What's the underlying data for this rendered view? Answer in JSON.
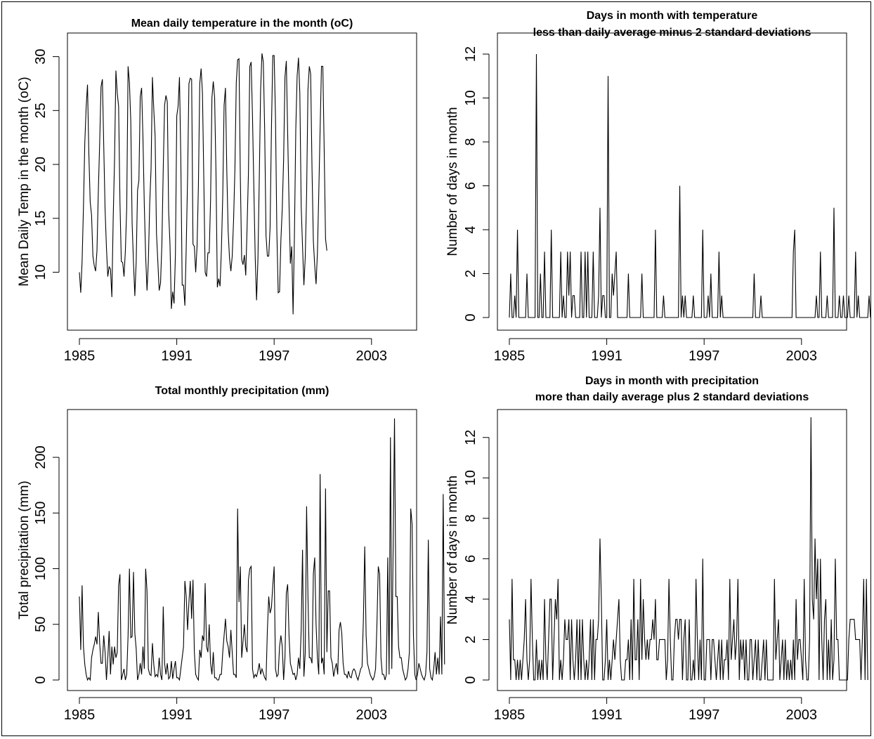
{
  "chart_data": [
    {
      "id": "temp",
      "type": "line",
      "title_lines": [
        "Mean daily temperature in the month (oC)"
      ],
      "xlabel": "",
      "ylabel": "Mean Daily Temp in the month (oC)",
      "xlim": [
        1985,
        2005
      ],
      "ylim": [
        5.8,
        30.3
      ],
      "x_ticks": [
        "1985",
        "1991",
        "1997",
        "2003"
      ],
      "y_ticks": [
        "10",
        "15",
        "20",
        "25",
        "30"
      ],
      "grid": false,
      "series": [
        {
          "x_start": 1985,
          "x_step": 0.0833333,
          "values": [
            10,
            8.1,
            11,
            16,
            22,
            25.3,
            27.4,
            21,
            16.5,
            15.3,
            11.5,
            10.6,
            10.1,
            12,
            17.5,
            22,
            27.2,
            27.9,
            21.8,
            15.8,
            12.3,
            9.6,
            10.5,
            10.3,
            7.7,
            15,
            20.5,
            28.7,
            26.6,
            25.4,
            16.5,
            11,
            10.9,
            9.6,
            12,
            16,
            29.1,
            27.6,
            24,
            14.5,
            10.9,
            7.8,
            11,
            17.6,
            18.5,
            26.3,
            27.1,
            22.5,
            16.2,
            11.5,
            8.3,
            11,
            16.4,
            19.6,
            28.1,
            25.1,
            22.6,
            13.6,
            11,
            8.3,
            9,
            12.6,
            19.6,
            25.5,
            26.4,
            25.8,
            15.6,
            12.6,
            6.6,
            8.2,
            7.1,
            11.6,
            24.5,
            25.4,
            28.1,
            20.5,
            8.8,
            8.8,
            6.9,
            12.3,
            18.8,
            27.5,
            28,
            27.9,
            12.6,
            12.4,
            10,
            12.4,
            18,
            27.5,
            28.9,
            26.6,
            18.6,
            10,
            9.6,
            11.8,
            11.8,
            16.7,
            26.2,
            27.7,
            26.2,
            19.2,
            8.6,
            9.4,
            8.7,
            12.1,
            17.1,
            25.5,
            27.1,
            19.4,
            13.8,
            11.3,
            10.1,
            11.5,
            14.8,
            19.6,
            27.6,
            29.7,
            29.8,
            18.9,
            11.2,
            10.7,
            11.6,
            9.7,
            14.2,
            19.2,
            29.1,
            29.5,
            24.4,
            17.8,
            11.4,
            7.4,
            11.1,
            18.6,
            26.9,
            30.3,
            29.5,
            23.2,
            13.4,
            11.5,
            11.5,
            14.1,
            23.3,
            30.1,
            30.1,
            24.4,
            13.8,
            8.1,
            8.2,
            13,
            15.9,
            20.4,
            28.1,
            29.6,
            22.9,
            16.4,
            10.8,
            12.4,
            6.1,
            13.4,
            23.2,
            28.2,
            29.9,
            26.6,
            16.1,
            12.4,
            8.8,
            11.4,
            17.2,
            26.9,
            29.1,
            28.4,
            19.6,
            12.9,
            10.6,
            8.9,
            11.8,
            17.3,
            23.3,
            29.1,
            29.1,
            21.4,
            13.1,
            12
          ]
        }
      ]
    },
    {
      "id": "cold",
      "type": "line",
      "title_lines": [
        "Days in month with temperature",
        "less than daily average minus 2 standard deviations"
      ],
      "xlabel": "",
      "ylabel": "Number of days in month",
      "xlim": [
        1985,
        2005
      ],
      "ylim": [
        0,
        12
      ],
      "x_ticks": [
        "1985",
        "1991",
        "1997",
        "2003"
      ],
      "y_ticks": [
        "0",
        "2",
        "4",
        "6",
        "8",
        "10",
        "12"
      ],
      "grid": false,
      "series": [
        {
          "x_start": 1985,
          "x_step": 0.0833333,
          "values": [
            0,
            2,
            0,
            0,
            1,
            0,
            4,
            0,
            0,
            0,
            0,
            0,
            0,
            2,
            0,
            0,
            0,
            0,
            0,
            0,
            12,
            0,
            0,
            2,
            0,
            0,
            3,
            0,
            0,
            0,
            0,
            4,
            0,
            0,
            0,
            0,
            0,
            0,
            3,
            0,
            1,
            0,
            0,
            3,
            1,
            3,
            0,
            1,
            1,
            0,
            0,
            0,
            0,
            3,
            0,
            0,
            3,
            0,
            3,
            0,
            0,
            0,
            3,
            0,
            0,
            0,
            1,
            5,
            0,
            1,
            1,
            0,
            0,
            11,
            0,
            0,
            2,
            1,
            2,
            3,
            0,
            0,
            0,
            0,
            0,
            0,
            0,
            0,
            2,
            0,
            0,
            0,
            0,
            0,
            0,
            0,
            0,
            0,
            2,
            0,
            0,
            0,
            0,
            0,
            0,
            0,
            0,
            0,
            4,
            0,
            0,
            0,
            0,
            0,
            1,
            0,
            0,
            0,
            0,
            0,
            0,
            0,
            0,
            0,
            0,
            0,
            6,
            0,
            1,
            0,
            1,
            0,
            0,
            0,
            0,
            0,
            1,
            0,
            0,
            0,
            0,
            0,
            0,
            4,
            0,
            0,
            0,
            1,
            0,
            2,
            0,
            0,
            0,
            0,
            0,
            3,
            0,
            1,
            0,
            0,
            0,
            0,
            0,
            0,
            0,
            0,
            0,
            0,
            0,
            0,
            0,
            0,
            0,
            0,
            0,
            0,
            0,
            0,
            0,
            0,
            0,
            2,
            0,
            0,
            0,
            0,
            1,
            0,
            0,
            0,
            0,
            0,
            0,
            0,
            0,
            0,
            0,
            0,
            0,
            0,
            0,
            0,
            0,
            0,
            0,
            0,
            0,
            0,
            0,
            0,
            3,
            4,
            0,
            0,
            0,
            0,
            0,
            0,
            0,
            0,
            0,
            0,
            0,
            0,
            0,
            0,
            0,
            1,
            0,
            0,
            3,
            0,
            0,
            0,
            0,
            1,
            0,
            0,
            0,
            0,
            5,
            0,
            0,
            0,
            1,
            0,
            0,
            1,
            0,
            0,
            0,
            1,
            0,
            0,
            0,
            0,
            3,
            0,
            1,
            0,
            0,
            0,
            0,
            0,
            0,
            0,
            1,
            0
          ]
        }
      ]
    },
    {
      "id": "precip",
      "type": "line",
      "title_lines": [
        "Total monthly precipitation (mm)"
      ],
      "xlabel": "",
      "ylabel": "Total precipitation (mm)",
      "xlim": [
        1985,
        2005
      ],
      "ylim": [
        0,
        236
      ],
      "x_ticks": [
        "1985",
        "1991",
        "1997",
        "2003"
      ],
      "y_ticks": [
        "0",
        "50",
        "100",
        "150",
        "200"
      ],
      "grid": false,
      "series": [
        {
          "x_start": 1985,
          "x_step": 0.0833333,
          "values": [
            75,
            27,
            85,
            30,
            14,
            5,
            0,
            2,
            0,
            20,
            27,
            32,
            39,
            32,
            61,
            33,
            15,
            15,
            40,
            25,
            0,
            20,
            44,
            5,
            30,
            14,
            30,
            20,
            25,
            85,
            95,
            0,
            5,
            10,
            0,
            5,
            40,
            100,
            38,
            39,
            97,
            42,
            28,
            0,
            5,
            15,
            5,
            30,
            10,
            100,
            80,
            10,
            5,
            4,
            33,
            14,
            3,
            5,
            3,
            20,
            5,
            0,
            66,
            15,
            5,
            15,
            1,
            3,
            17,
            1,
            10,
            17,
            2,
            2,
            0,
            10,
            20,
            30,
            89,
            75,
            45,
            70,
            89,
            55,
            90,
            25,
            5,
            2,
            0,
            27,
            20,
            40,
            35,
            87,
            30,
            25,
            50,
            15,
            5,
            25,
            2,
            2,
            0,
            0,
            5,
            5,
            25,
            40,
            55,
            35,
            30,
            20,
            45,
            25,
            5,
            5,
            2,
            154,
            70,
            102,
            20,
            35,
            50,
            30,
            25,
            90,
            100,
            102,
            10,
            2,
            5,
            3,
            8,
            15,
            5,
            10,
            6,
            2,
            0,
            45,
            75,
            60,
            65,
            85,
            102,
            10,
            3,
            5,
            30,
            40,
            30,
            0,
            20,
            78,
            86,
            40,
            15,
            10,
            5,
            6,
            0,
            5,
            20,
            10,
            45,
            117,
            3,
            24,
            156,
            75,
            20,
            20,
            15,
            95,
            110,
            50,
            20,
            5,
            185,
            15,
            20,
            5,
            172,
            25,
            80,
            80,
            20,
            15,
            3,
            10,
            15,
            5,
            45,
            52,
            42,
            15,
            5,
            5,
            2,
            8,
            3,
            2,
            8,
            10,
            8,
            3,
            0,
            5,
            10,
            12,
            55,
            120,
            40,
            15,
            10,
            5,
            2,
            0,
            3,
            10,
            50,
            102,
            95,
            20,
            5,
            5,
            0,
            5,
            110,
            5,
            218,
            10,
            120,
            235,
            75,
            75,
            30,
            20,
            20,
            10,
            5,
            0,
            2,
            10,
            25,
            154,
            140,
            40,
            5,
            0,
            5,
            15,
            10,
            5,
            2,
            0,
            5,
            25,
            126,
            10,
            2,
            0,
            10,
            25,
            5,
            20,
            5,
            57,
            5,
            167,
            14
          ]
        }
      ]
    },
    {
      "id": "wet",
      "type": "line",
      "title_lines": [
        "Days in month with precipitation",
        "more than daily average plus 2 standard deviations"
      ],
      "xlabel": "",
      "ylabel": "Number of days in month",
      "xlim": [
        1985,
        2005
      ],
      "ylim": [
        0,
        13
      ],
      "x_ticks": [
        "1985",
        "1991",
        "1997",
        "2003"
      ],
      "y_ticks": [
        "0",
        "2",
        "4",
        "6",
        "8",
        "10",
        "12"
      ],
      "grid": false,
      "series": [
        {
          "x_start": 1985,
          "x_step": 0.0833333,
          "values": [
            3,
            0,
            5,
            1,
            1,
            0,
            1,
            0,
            1,
            0,
            1,
            2,
            4,
            1,
            0,
            1,
            5,
            2,
            0,
            0,
            2,
            0,
            1,
            0,
            1,
            0,
            4,
            1,
            0,
            2,
            4,
            4,
            0,
            2,
            4,
            3,
            5,
            0,
            1,
            0,
            1,
            3,
            2,
            2,
            3,
            0,
            3,
            1,
            0,
            1,
            3,
            0,
            3,
            0,
            3,
            1,
            0,
            1,
            0,
            1,
            3,
            0,
            3,
            0,
            2,
            2,
            3,
            7,
            4,
            0,
            0,
            1,
            3,
            0,
            1,
            0,
            1,
            2,
            1,
            2,
            3,
            4,
            1,
            0,
            0,
            0,
            1,
            1,
            2,
            0,
            3,
            0,
            5,
            1,
            1,
            3,
            0,
            5,
            1,
            4,
            2,
            1,
            2,
            1,
            2,
            2,
            3,
            2,
            4,
            1,
            1,
            2,
            2,
            2,
            2,
            2,
            0,
            1,
            5,
            2,
            0,
            0,
            2,
            3,
            3,
            2,
            3,
            3,
            0,
            2,
            3,
            0,
            0,
            3,
            0,
            0,
            1,
            0,
            5,
            2,
            0,
            2,
            0,
            6,
            0,
            0,
            2,
            2,
            2,
            0,
            2,
            2,
            1,
            0,
            1,
            2,
            0,
            2,
            0,
            1,
            1,
            2,
            0,
            5,
            1,
            2,
            3,
            1,
            2,
            5,
            0,
            2,
            1,
            2,
            0,
            2,
            0,
            0,
            2,
            2,
            0,
            1,
            2,
            0,
            2,
            0,
            0,
            1,
            2,
            0,
            2,
            0,
            0,
            0,
            0,
            0,
            5,
            1,
            2,
            3,
            0,
            1,
            2,
            0,
            2,
            0,
            1,
            0,
            1,
            0,
            2,
            0,
            4,
            1,
            2,
            2,
            1,
            0,
            5,
            1,
            0,
            0,
            2,
            13,
            4,
            3,
            7,
            4,
            6,
            0,
            6,
            2,
            0,
            3,
            4,
            0,
            2,
            0,
            3,
            0,
            1,
            6,
            2,
            2,
            0,
            0,
            0,
            0,
            0,
            0,
            0,
            2,
            3,
            3,
            3,
            3,
            2,
            2,
            2,
            2,
            0,
            2,
            5,
            0,
            5,
            0
          ]
        }
      ]
    }
  ]
}
